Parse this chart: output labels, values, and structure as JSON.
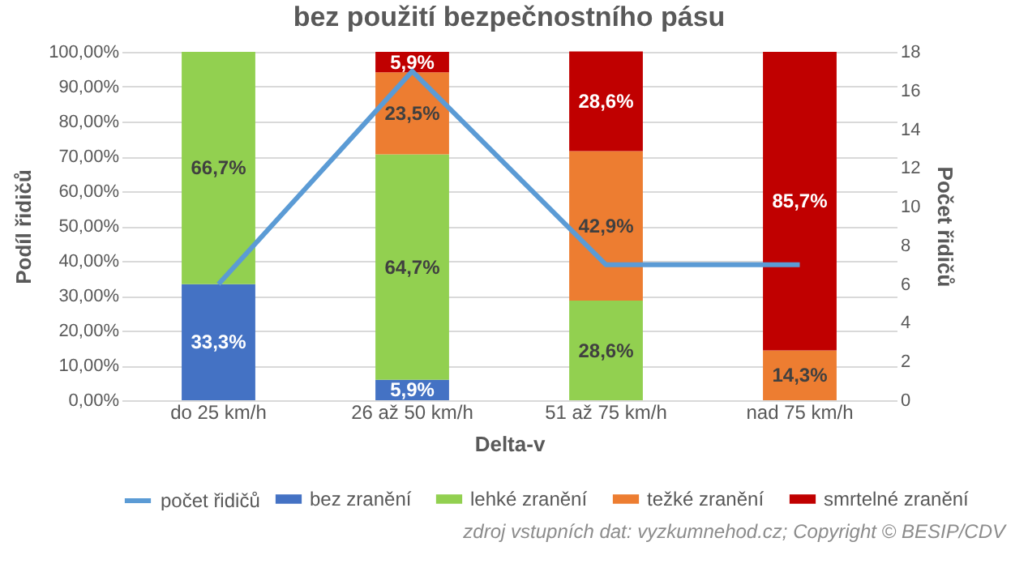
{
  "chart_data": {
    "type": "bar",
    "stacked": true,
    "title": "bez použití bezpečnostního pásu",
    "xlabel": "Delta-v",
    "ylabel": "Podíl řidičů",
    "y2label": "Počet řidičů",
    "categories": [
      "do 25 km/h",
      "26 až 50 km/h",
      "51 až 75 km/h",
      "nad 75 km/h"
    ],
    "series": [
      {
        "name": "bez zranění",
        "color": "#4472c4",
        "values": [
          33.3,
          5.9,
          null,
          null
        ],
        "value_labels": [
          "33,3%",
          "5,9%",
          null,
          null
        ]
      },
      {
        "name": "lehké zranění",
        "color": "#92d050",
        "values": [
          66.7,
          64.7,
          28.6,
          null
        ],
        "value_labels": [
          "66,7%",
          "64,7%",
          "28,6%",
          null
        ]
      },
      {
        "name": "težké zranění",
        "color": "#ed7d31",
        "values": [
          null,
          23.5,
          42.9,
          14.3
        ],
        "value_labels": [
          null,
          "23,5%",
          "42,9%",
          "14,3%"
        ]
      },
      {
        "name": "smrtelné zranění",
        "color": "#c00000",
        "values": [
          null,
          5.9,
          28.6,
          85.7
        ],
        "value_labels": [
          null,
          "5,9%",
          "28,6%",
          "85,7%"
        ]
      },
      {
        "name": "počet řidičů",
        "color": "#5b9bd5",
        "type": "line",
        "axis": "y2",
        "values": [
          6,
          17,
          7,
          7
        ]
      }
    ],
    "ylim": [
      0,
      100
    ],
    "yticks": [
      {
        "value": 0,
        "label": "0,00%"
      },
      {
        "value": 10,
        "label": "10,00%"
      },
      {
        "value": 20,
        "label": "20,00%"
      },
      {
        "value": 30,
        "label": "30,00%"
      },
      {
        "value": 40,
        "label": "40,00%"
      },
      {
        "value": 50,
        "label": "50,00%"
      },
      {
        "value": 60,
        "label": "60,00%"
      },
      {
        "value": 70,
        "label": "70,00%"
      },
      {
        "value": 80,
        "label": "80,00%"
      },
      {
        "value": 90,
        "label": "90,00%"
      },
      {
        "value": 100,
        "label": "100,00%"
      }
    ],
    "y2lim": [
      0,
      18
    ],
    "y2ticks": [
      0,
      2,
      4,
      6,
      8,
      10,
      12,
      14,
      16,
      18
    ],
    "grid": "y",
    "legend": "bottom",
    "marker": "none",
    "line_style": "solid",
    "annotations": [
      "zdroj vstupních dat: vyzkumnehod.cz; Copyright © BESIP/CDV"
    ]
  }
}
